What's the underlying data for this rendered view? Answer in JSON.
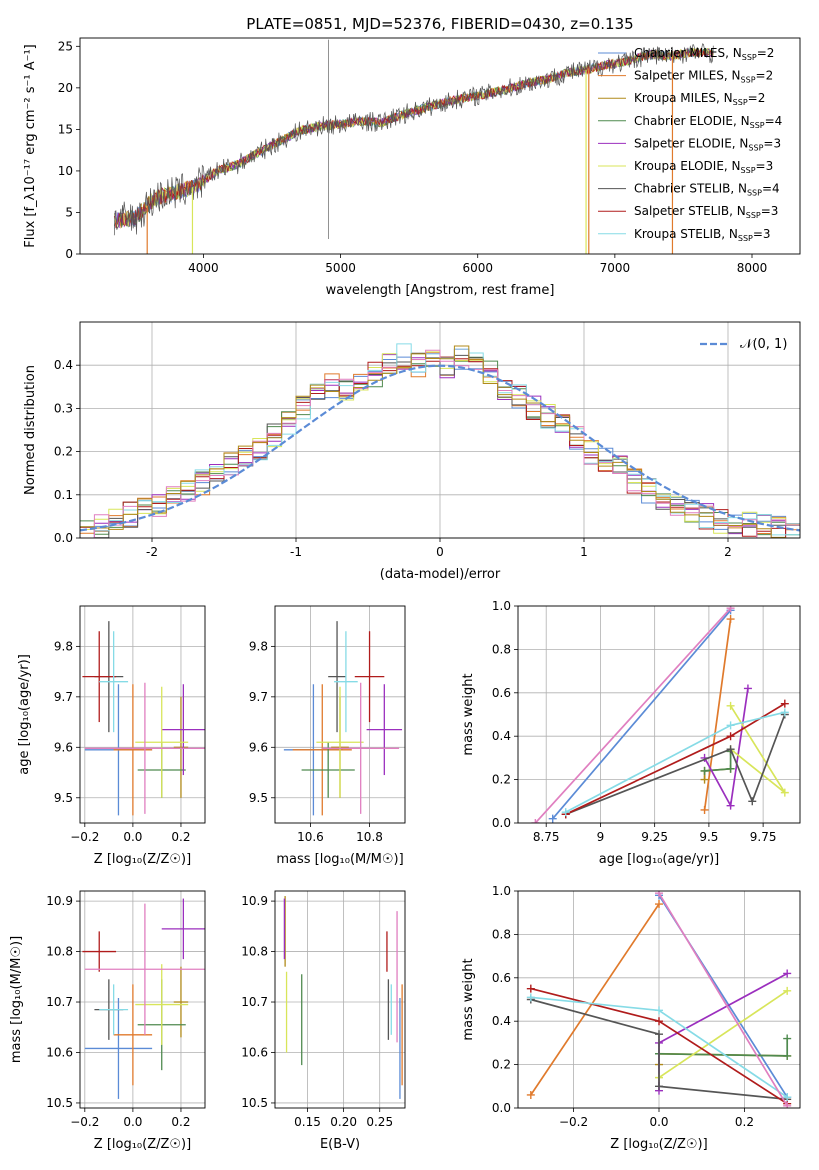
{
  "colors": [
    "#5b8bd6",
    "#e07a2c",
    "#b08a1a",
    "#4f8a4f",
    "#9b2fbe",
    "#d8e55a",
    "#555555",
    "#b01c1c",
    "#86dbe6",
    "#e07fc0"
  ],
  "chart_data": [
    {
      "id": "spectrum",
      "type": "line",
      "title": "PLATE=0851, MJD=52376, FIBERID=0430, z=0.135",
      "xlabel": "wavelength [Angstrom, rest frame]",
      "ylabel": "Flux [f_λ10⁻¹⁷ erg cm⁻² s⁻¹ A⁻¹]",
      "xlim": [
        3100,
        8350
      ],
      "ylim": [
        0,
        26
      ],
      "xticks": [
        4000,
        5000,
        6000,
        7000,
        8000
      ],
      "yticks": [
        0,
        5,
        10,
        15,
        20,
        25
      ],
      "grid": false,
      "legend_position": "top-right",
      "data_x": [
        3350,
        3500,
        3650,
        3800,
        3950,
        4100,
        4250,
        4400,
        4550,
        4700,
        4850,
        5000,
        5150,
        5300,
        5450,
        5600,
        5750,
        5900,
        6050,
        6200,
        6350,
        6500,
        6650,
        6800,
        6950,
        7100,
        7250,
        7400,
        7550,
        7700
      ],
      "data_y": [
        4.0,
        4.3,
        6.8,
        7.4,
        8.2,
        10.0,
        10.8,
        12.2,
        13.5,
        14.8,
        15.4,
        15.6,
        16.0,
        15.8,
        16.8,
        17.5,
        18.2,
        18.8,
        19.2,
        19.8,
        20.5,
        21.0,
        21.8,
        22.2,
        22.8,
        23.2,
        24.0,
        23.8,
        24.3,
        24.2
      ],
      "series": [
        {
          "name": "Chabrier MILES, N_SSP=2"
        },
        {
          "name": "Salpeter MILES, N_SSP=2"
        },
        {
          "name": "Kroupa MILES, N_SSP=2"
        },
        {
          "name": "Chabrier ELODIE, N_SSP=4"
        },
        {
          "name": "Salpeter ELODIE, N_SSP=3"
        },
        {
          "name": "Kroupa ELODIE, N_SSP=3"
        },
        {
          "name": "Chabrier STELIB, N_SSP=4"
        },
        {
          "name": "Salpeter STELIB, N_SSP=3"
        },
        {
          "name": "Kroupa STELIB, N_SSP=3"
        }
      ]
    },
    {
      "id": "residuals",
      "type": "line",
      "xlabel": "(data-model)/error",
      "ylabel": "Normed distribution",
      "xlim": [
        -2.5,
        2.5
      ],
      "ylim": [
        0,
        0.5
      ],
      "xticks": [
        -2,
        -1,
        0,
        1,
        2
      ],
      "yticks": [
        0.0,
        0.1,
        0.2,
        0.3,
        0.4
      ],
      "grid": true,
      "legend": "𝒩(0, 1)",
      "legend_position": "top-right",
      "histogram": {
        "bin_start": -2.5,
        "bin_width": 0.1,
        "values": [
          0.015,
          0.03,
          0.045,
          0.055,
          0.065,
          0.075,
          0.09,
          0.11,
          0.13,
          0.15,
          0.17,
          0.19,
          0.21,
          0.24,
          0.27,
          0.3,
          0.33,
          0.35,
          0.34,
          0.36,
          0.38,
          0.41,
          0.42,
          0.4,
          0.41,
          0.4,
          0.42,
          0.41,
          0.38,
          0.35,
          0.33,
          0.3,
          0.28,
          0.26,
          0.23,
          0.2,
          0.18,
          0.16,
          0.13,
          0.11,
          0.09,
          0.075,
          0.06,
          0.05,
          0.04,
          0.035,
          0.03,
          0.025,
          0.02,
          0.015
        ]
      }
    },
    {
      "id": "age-vs-Z",
      "type": "scatter",
      "xlabel": "Z [log₁₀(Z/Z☉)]",
      "ylabel": "age  [log₁₀(age/yr)]",
      "xlim": [
        -0.22,
        0.3
      ],
      "ylim": [
        9.45,
        9.88
      ],
      "xticks": [
        -0.2,
        0.0,
        0.2
      ],
      "xtick_labels": [
        "−0.2",
        "0.0",
        "0.2"
      ],
      "yticks": [
        9.5,
        9.6,
        9.7,
        9.8
      ],
      "grid": true,
      "points": [
        {
          "x": -0.06,
          "xerr": 0.14,
          "y": 9.595,
          "yerr": 0.13
        },
        {
          "x": 0.0,
          "xerr": 0.08,
          "y": 9.595,
          "yerr": 0.13
        },
        {
          "x": 0.2,
          "xerr": 0.03,
          "y": 9.6,
          "yerr": 0.1
        },
        {
          "x": 0.12,
          "xerr": 0.1,
          "y": 9.555,
          "yerr": 0.055
        },
        {
          "x": 0.21,
          "xerr": 0.09,
          "y": 9.635,
          "yerr": 0.09
        },
        {
          "x": 0.12,
          "xerr": 0.11,
          "y": 9.61,
          "yerr": 0.11
        },
        {
          "x": -0.1,
          "xerr": 0.06,
          "y": 9.74,
          "yerr": 0.11
        },
        {
          "x": -0.14,
          "xerr": 0.07,
          "y": 9.74,
          "yerr": 0.09
        },
        {
          "x": -0.08,
          "xerr": 0.06,
          "y": 9.73,
          "yerr": 0.1
        },
        {
          "x": 0.05,
          "xerr": 0.25,
          "y": 9.598,
          "yerr": 0.13
        }
      ]
    },
    {
      "id": "age-vs-mass",
      "type": "scatter",
      "xlabel": "mass [log₁₀(M/M☉)]",
      "ylim": [
        9.45,
        9.88
      ],
      "xlim": [
        10.48,
        10.92
      ],
      "xticks": [
        10.6,
        10.8
      ],
      "yticks": [
        9.5,
        9.6,
        9.7,
        9.8
      ],
      "grid": true,
      "points": [
        {
          "x": 10.61,
          "xerr": 0.1,
          "y": 9.595,
          "yerr": 0.13
        },
        {
          "x": 10.64,
          "xerr": 0.1,
          "y": 9.595,
          "yerr": 0.13
        },
        {
          "x": 10.7,
          "xerr": 0.03,
          "y": 9.6,
          "yerr": 0.1
        },
        {
          "x": 10.66,
          "xerr": 0.09,
          "y": 9.555,
          "yerr": 0.055
        },
        {
          "x": 10.85,
          "xerr": 0.06,
          "y": 9.635,
          "yerr": 0.09
        },
        {
          "x": 10.7,
          "xerr": 0.08,
          "y": 9.61,
          "yerr": 0.11
        },
        {
          "x": 10.69,
          "xerr": 0.03,
          "y": 9.74,
          "yerr": 0.11
        },
        {
          "x": 10.8,
          "xerr": 0.05,
          "y": 9.74,
          "yerr": 0.09
        },
        {
          "x": 10.72,
          "xerr": 0.04,
          "y": 9.73,
          "yerr": 0.1
        },
        {
          "x": 10.77,
          "xerr": 0.13,
          "y": 9.598,
          "yerr": 0.13
        }
      ]
    },
    {
      "id": "mass-weight-vs-age",
      "type": "line",
      "xlabel": "age  [log₁₀(age/yr)]",
      "ylabel": "mass weight",
      "xlim": [
        8.62,
        9.92
      ],
      "ylim": [
        0,
        1
      ],
      "xticks": [
        8.75,
        9.0,
        9.25,
        9.5,
        9.75
      ],
      "yticks": [
        0.0,
        0.2,
        0.4,
        0.6,
        0.8,
        1.0
      ],
      "grid": true,
      "series": [
        {
          "x": [
            8.78,
            9.6
          ],
          "y": [
            0.02,
            0.98
          ]
        },
        {
          "x": [
            9.48,
            9.6
          ],
          "y": [
            0.06,
            0.94
          ]
        },
        {
          "x": [
            9.48,
            9.48,
            9.6
          ],
          "y": [
            0.2,
            0.24,
            0.25
          ]
        },
        {
          "x": [
            9.48,
            9.6,
            9.6
          ],
          "y": [
            0.24,
            0.25,
            0.33
          ]
        },
        {
          "x": [
            9.48,
            9.6,
            9.68
          ],
          "y": [
            0.3,
            0.08,
            0.62
          ]
        },
        {
          "x": [
            9.6,
            9.85,
            9.6
          ],
          "y": [
            0.54,
            0.14,
            0.34
          ]
        },
        {
          "x": [
            8.84,
            9.6,
            9.7,
            9.85
          ],
          "y": [
            0.04,
            0.34,
            0.1,
            0.5
          ]
        },
        {
          "x": [
            8.84,
            9.6,
            9.85
          ],
          "y": [
            0.04,
            0.4,
            0.55
          ]
        },
        {
          "x": [
            8.84,
            9.6,
            9.85
          ],
          "y": [
            0.05,
            0.45,
            0.51
          ]
        },
        {
          "x": [
            8.7,
            9.6
          ],
          "y": [
            0.0,
            0.99
          ]
        }
      ]
    },
    {
      "id": "mass-vs-Z",
      "type": "scatter",
      "xlabel": "Z [log₁₀(Z/Z☉)]",
      "ylabel": "mass [log₁₀(M/M☉)]",
      "xlim": [
        -0.22,
        0.3
      ],
      "ylim": [
        10.49,
        10.92
      ],
      "xticks": [
        -0.2,
        0.0,
        0.2
      ],
      "xtick_labels": [
        "−0.2",
        "0.0",
        "0.2"
      ],
      "yticks": [
        10.5,
        10.6,
        10.7,
        10.8,
        10.9
      ],
      "grid": true,
      "points": [
        {
          "x": -0.06,
          "xerr": 0.14,
          "y": 10.608,
          "yerr": 0.1
        },
        {
          "x": 0.0,
          "xerr": 0.08,
          "y": 10.635,
          "yerr": 0.1
        },
        {
          "x": 0.2,
          "xerr": 0.03,
          "y": 10.7,
          "yerr": 0.07
        },
        {
          "x": 0.12,
          "xerr": 0.1,
          "y": 10.655,
          "yerr": 0.09
        },
        {
          "x": 0.21,
          "xerr": 0.09,
          "y": 10.845,
          "yerr": 0.06
        },
        {
          "x": 0.12,
          "xerr": 0.11,
          "y": 10.695,
          "yerr": 0.08
        },
        {
          "x": -0.1,
          "xerr": 0.06,
          "y": 10.685,
          "yerr": 0.06
        },
        {
          "x": -0.14,
          "xerr": 0.07,
          "y": 10.8,
          "yerr": 0.04
        },
        {
          "x": -0.08,
          "xerr": 0.06,
          "y": 10.685,
          "yerr": 0.05
        },
        {
          "x": 0.05,
          "xerr": 0.25,
          "y": 10.765,
          "yerr": 0.13
        }
      ]
    },
    {
      "id": "mass-vs-ebv",
      "type": "scatter",
      "xlabel": "E(B-V)",
      "xlim": [
        0.105,
        0.285
      ],
      "ylim": [
        10.49,
        10.92
      ],
      "xticks": [
        0.15,
        0.2,
        0.25
      ],
      "xtick_labels": [
        "0.15",
        "0.20",
        "0.25"
      ],
      "yticks": [
        10.5,
        10.6,
        10.7,
        10.8,
        10.9
      ],
      "grid": true,
      "points": [
        {
          "x": 0.278,
          "y": 10.608,
          "yerr": 0.1
        },
        {
          "x": 0.281,
          "y": 10.635,
          "yerr": 0.1
        },
        {
          "x": 0.119,
          "y": 10.84,
          "yerr": 0.07
        },
        {
          "x": 0.142,
          "y": 10.665,
          "yerr": 0.09
        },
        {
          "x": 0.118,
          "y": 10.845,
          "yerr": 0.06
        },
        {
          "x": 0.121,
          "y": 10.68,
          "yerr": 0.08
        },
        {
          "x": 0.262,
          "y": 10.685,
          "yerr": 0.06
        },
        {
          "x": 0.26,
          "y": 10.8,
          "yerr": 0.04
        },
        {
          "x": 0.266,
          "y": 10.685,
          "yerr": 0.05
        },
        {
          "x": 0.274,
          "y": 10.75,
          "yerr": 0.13
        }
      ]
    },
    {
      "id": "mass-weight-vs-Z",
      "type": "line",
      "xlabel": "Z [log₁₀(Z/Z☉)]",
      "ylabel": "mass weight",
      "xlim": [
        -0.33,
        0.33
      ],
      "ylim": [
        0,
        1
      ],
      "xticks": [
        -0.2,
        0.0,
        0.2
      ],
      "xtick_labels": [
        "−0.2",
        "0.0",
        "0.2"
      ],
      "yticks": [
        0.0,
        0.2,
        0.4,
        0.6,
        0.8,
        1.0
      ],
      "grid": true,
      "series": [
        {
          "x": [
            0.0,
            0.3
          ],
          "y": [
            0.98,
            0.05
          ]
        },
        {
          "x": [
            -0.3,
            0.0
          ],
          "y": [
            0.06,
            0.94
          ]
        },
        {
          "x": [
            0.0,
            0.0,
            0.3
          ],
          "y": [
            0.2,
            0.25,
            0.24
          ]
        },
        {
          "x": [
            0.0,
            0.3,
            0.3
          ],
          "y": [
            0.25,
            0.24,
            0.32
          ]
        },
        {
          "x": [
            0.0,
            0.0,
            0.3
          ],
          "y": [
            0.08,
            0.3,
            0.62
          ]
        },
        {
          "x": [
            0.0,
            0.3
          ],
          "y": [
            0.14,
            0.54
          ]
        },
        {
          "x": [
            -0.3,
            0.0,
            0.0,
            0.3
          ],
          "y": [
            0.5,
            0.34,
            0.1,
            0.04
          ]
        },
        {
          "x": [
            -0.3,
            0.0,
            0.3
          ],
          "y": [
            0.55,
            0.4,
            0.02
          ]
        },
        {
          "x": [
            -0.3,
            0.0,
            0.3
          ],
          "y": [
            0.51,
            0.45,
            0.05
          ]
        },
        {
          "x": [
            0.0,
            0.3
          ],
          "y": [
            0.99,
            0.01
          ]
        }
      ]
    }
  ]
}
